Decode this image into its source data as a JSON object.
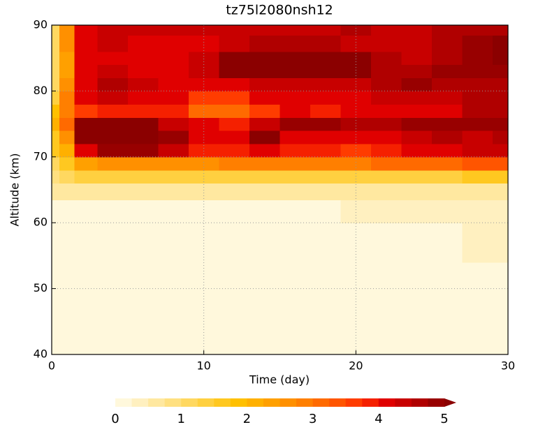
{
  "chart_data": {
    "type": "contour",
    "title": "tz75l2080nsh12",
    "xlabel": "Time (day)",
    "ylabel": "Altitude (km)",
    "xlim": [
      0,
      30
    ],
    "ylim": [
      40,
      90
    ],
    "xticks": [
      0,
      10,
      20,
      30
    ],
    "yticks": [
      40,
      50,
      60,
      70,
      80,
      90
    ],
    "grid": true,
    "x": [
      0,
      1,
      2,
      4,
      6,
      8,
      10,
      12,
      14,
      16,
      18,
      20,
      22,
      24,
      26,
      28,
      30
    ],
    "y": [
      40,
      50,
      58,
      62,
      65,
      67,
      69,
      71,
      73,
      75,
      77,
      79,
      81,
      83,
      85,
      87,
      90
    ],
    "values": [
      [
        0.1,
        0.1,
        0.1,
        0.1,
        0.1,
        0.1,
        0.1,
        0.1,
        0.1,
        0.1,
        0.1,
        0.1,
        0.1,
        0.1,
        0.1,
        0.1,
        0.1
      ],
      [
        0.1,
        0.1,
        0.1,
        0.1,
        0.1,
        0.1,
        0.1,
        0.1,
        0.1,
        0.1,
        0.1,
        0.1,
        0.1,
        0.1,
        0.1,
        0.1,
        0.1
      ],
      [
        0.1,
        0.1,
        0.1,
        0.1,
        0.1,
        0.1,
        0.1,
        0.1,
        0.1,
        0.1,
        0.1,
        0.1,
        0.1,
        0.1,
        0.1,
        0.3,
        0.3
      ],
      [
        0.2,
        0.2,
        0.2,
        0.2,
        0.2,
        0.2,
        0.2,
        0.2,
        0.2,
        0.2,
        0.2,
        0.4,
        0.4,
        0.4,
        0.4,
        0.4,
        0.4
      ],
      [
        0.6,
        0.7,
        0.7,
        0.7,
        0.7,
        0.7,
        0.7,
        0.7,
        0.7,
        0.7,
        0.7,
        0.7,
        0.7,
        0.7,
        0.7,
        0.7,
        0.7
      ],
      [
        0.9,
        1.0,
        1.3,
        1.3,
        1.3,
        1.3,
        1.3,
        1.3,
        1.3,
        1.3,
        1.3,
        1.3,
        1.4,
        1.4,
        1.4,
        1.5,
        1.5
      ],
      [
        1.2,
        1.6,
        2.4,
        2.6,
        2.6,
        2.6,
        2.6,
        2.8,
        2.8,
        2.8,
        2.8,
        2.8,
        3.0,
        3.0,
        3.2,
        3.4,
        3.4
      ],
      [
        1.5,
        2.2,
        4.0,
        4.8,
        4.8,
        4.4,
        3.8,
        3.8,
        4.0,
        3.8,
        3.8,
        3.6,
        3.8,
        4.0,
        4.2,
        4.4,
        4.4
      ],
      [
        1.6,
        2.6,
        5.0,
        5.2,
        5.1,
        4.8,
        4.0,
        4.0,
        5.0,
        4.2,
        4.2,
        4.0,
        4.2,
        4.4,
        4.6,
        4.4,
        4.6
      ],
      [
        2.2,
        3.0,
        5.0,
        5.2,
        5.0,
        4.4,
        4.0,
        3.8,
        4.4,
        4.8,
        4.8,
        4.6,
        4.6,
        4.8,
        4.8,
        4.8,
        4.8
      ],
      [
        1.8,
        2.8,
        3.6,
        3.8,
        3.8,
        3.8,
        3.2,
        3.0,
        3.6,
        4.0,
        3.8,
        4.0,
        4.0,
        4.2,
        4.2,
        4.6,
        4.6
      ],
      [
        1.4,
        2.8,
        4.0,
        4.4,
        4.2,
        4.2,
        3.6,
        3.6,
        4.0,
        4.2,
        4.2,
        4.2,
        4.4,
        4.4,
        4.4,
        4.6,
        4.6
      ],
      [
        1.2,
        2.6,
        4.2,
        4.6,
        4.4,
        4.2,
        4.0,
        4.2,
        4.4,
        4.4,
        4.4,
        4.4,
        4.6,
        4.8,
        4.6,
        4.6,
        4.6
      ],
      [
        1.0,
        2.4,
        4.0,
        4.4,
        4.2,
        4.2,
        4.4,
        5.2,
        5.4,
        5.4,
        5.4,
        5.2,
        4.6,
        4.6,
        4.8,
        4.8,
        4.8
      ],
      [
        1.0,
        2.4,
        4.0,
        4.2,
        4.2,
        4.2,
        4.4,
        5.4,
        5.4,
        5.4,
        5.4,
        5.4,
        4.6,
        4.4,
        4.6,
        4.8,
        5.2
      ],
      [
        1.0,
        2.6,
        4.0,
        4.4,
        4.2,
        4.2,
        4.2,
        4.4,
        4.6,
        4.6,
        4.6,
        4.4,
        4.4,
        4.4,
        4.6,
        4.8,
        5.0
      ],
      [
        1.0,
        2.6,
        4.2,
        4.4,
        4.4,
        4.4,
        4.4,
        4.4,
        4.4,
        4.4,
        4.4,
        4.6,
        4.4,
        4.4,
        4.6,
        4.6,
        4.6
      ]
    ],
    "levels": [
      0,
      0.25,
      0.5,
      0.75,
      1,
      1.25,
      1.5,
      1.75,
      2,
      2.25,
      2.5,
      2.75,
      3,
      3.25,
      3.5,
      3.75,
      4,
      4.25,
      4.5,
      4.75,
      5
    ],
    "colors": [
      "#fff8dc",
      "#fff0c0",
      "#ffe8a0",
      "#ffe080",
      "#ffd860",
      "#ffd040",
      "#ffc820",
      "#ffc000",
      "#ffb000",
      "#ffa000",
      "#ff9000",
      "#ff7f00",
      "#ff6a00",
      "#ff5500",
      "#ff3c00",
      "#f52000",
      "#e00000",
      "#c80000",
      "#b00000",
      "#980000"
    ],
    "extend_color": "#8b0000",
    "cbar_ticks": [
      0,
      1,
      2,
      3,
      4,
      5
    ]
  }
}
